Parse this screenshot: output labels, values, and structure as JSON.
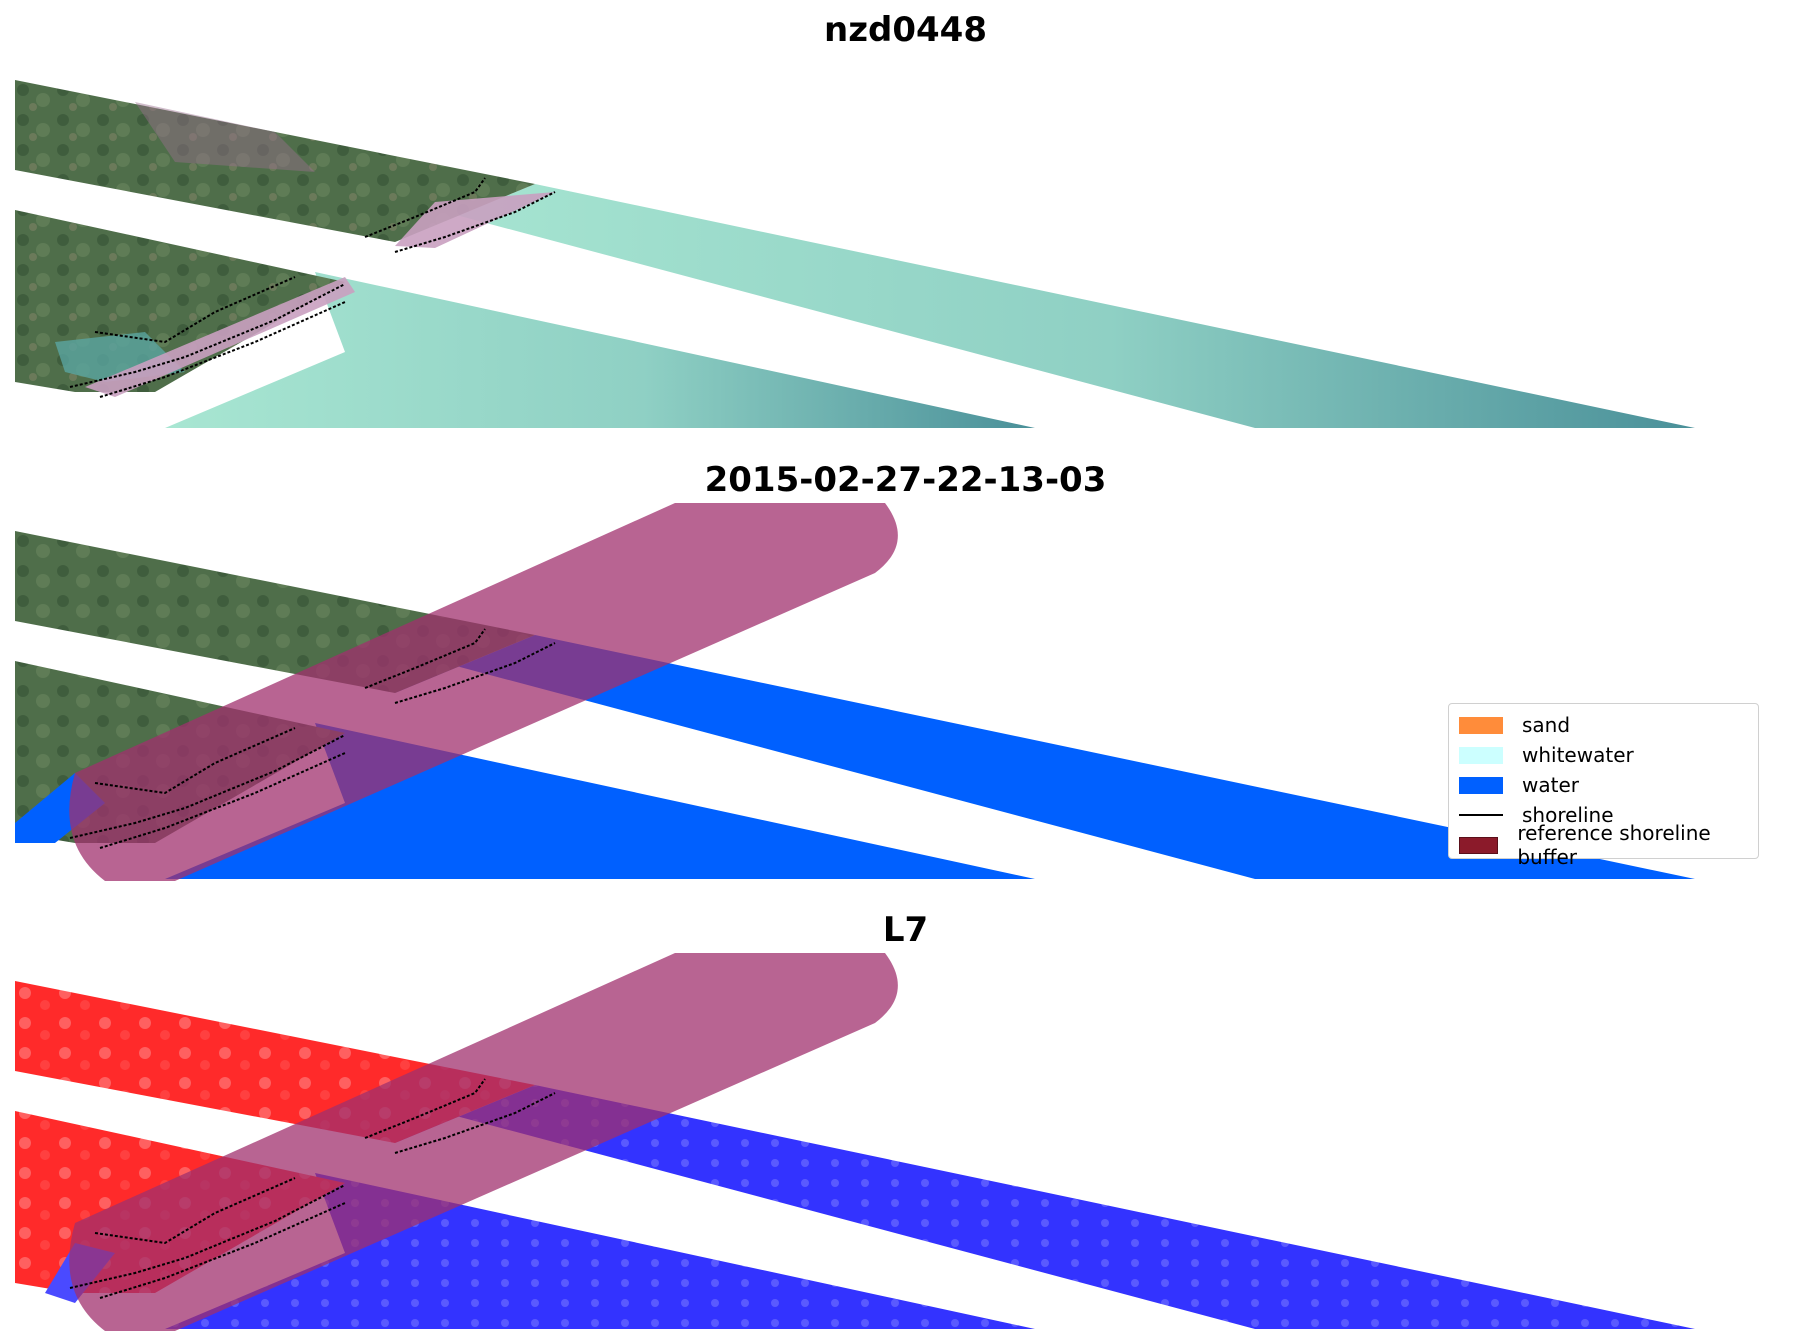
{
  "panels": [
    {
      "title": "nzd0448"
    },
    {
      "title": "2015-02-27-22-13-03"
    },
    {
      "title": "L7"
    }
  ],
  "legend": {
    "items": [
      {
        "label": "sand",
        "color": "#ff8c3a"
      },
      {
        "label": "whitewater",
        "color": "#ccffff"
      },
      {
        "label": "water",
        "color": "#0060ff"
      },
      {
        "label": "shoreline",
        "color": "#000000"
      },
      {
        "label": "reference shoreline buffer",
        "color": "#8b1a2a"
      }
    ]
  },
  "colors": {
    "land_rgb": "#4f6e4a",
    "land_highlight": "#c39bb6",
    "sea_rgb": "#8fd6c2",
    "sea_far": "#4a9a9a",
    "water_class": "#0060ff",
    "land_false": "#ff2a2a",
    "water_false": "#3333ff",
    "buffer": "#a0306e"
  }
}
